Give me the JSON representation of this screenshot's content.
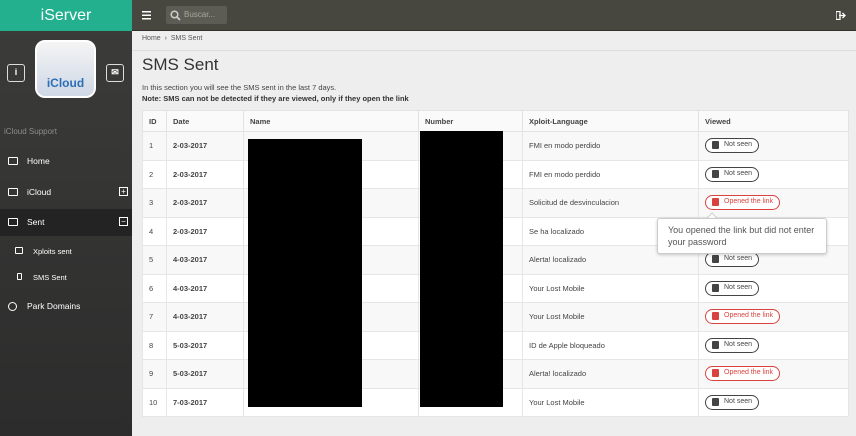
{
  "header": {
    "brand": "iServer",
    "search_placeholder": "Buscar..."
  },
  "sidebar": {
    "avatar_label": "iCloud",
    "section": "iCloud Support",
    "menu": [
      "Home",
      "iCloud",
      "Sent",
      "Xploits sent",
      "SMS Sent",
      "Park Domains"
    ]
  },
  "breadcrumb": [
    "Home",
    "SMS Sent"
  ],
  "page": {
    "title": "SMS Sent",
    "description": "In this section you will see the SMS sent in the last 7 days.",
    "note": "Note: SMS can not be detected if they are viewed, only if they open the link"
  },
  "table": {
    "columns": [
      "ID",
      "Date",
      "Name",
      "Number",
      "Xploit-Language",
      "Viewed"
    ],
    "rows": [
      {
        "id": 1,
        "date": "2-03-2017",
        "language": "FMI en modo perdido",
        "viewed": "Not seen",
        "viewed_color": "#444444"
      },
      {
        "id": 2,
        "date": "2-03-2017",
        "language": "FMI en modo perdido",
        "viewed": "Not seen",
        "viewed_color": "#444444"
      },
      {
        "id": 3,
        "date": "2-03-2017",
        "language": "Solicitud de desvinculacion",
        "viewed": "Opened the link",
        "viewed_color": "#d9433f"
      },
      {
        "id": 4,
        "date": "2-03-2017",
        "language": "Se ha localizado"
      },
      {
        "id": 5,
        "date": "4-03-2017",
        "language": "Alerta! localizado",
        "viewed": "Not seen",
        "viewed_color": "#444444"
      },
      {
        "id": 6,
        "date": "4-03-2017",
        "language": "Your Lost Mobile",
        "viewed": "Not seen",
        "viewed_color": "#444444"
      },
      {
        "id": 7,
        "date": "4-03-2017",
        "language": "Your Lost Mobile",
        "viewed": "Opened the link",
        "viewed_color": "#d9433f"
      },
      {
        "id": 8,
        "date": "5-03-2017",
        "language": "ID de Apple bloqueado",
        "viewed": "Not seen",
        "viewed_color": "#444444"
      },
      {
        "id": 9,
        "date": "5-03-2017",
        "language": "Alerta! localizado",
        "viewed": "Opened the link",
        "viewed_color": "#d9433f"
      },
      {
        "id": 10,
        "date": "7-03-2017",
        "language": "Your Lost Mobile",
        "viewed": "Not seen",
        "viewed_color": "#444444"
      }
    ]
  },
  "tooltip": "You opened the link but did not enter your password"
}
